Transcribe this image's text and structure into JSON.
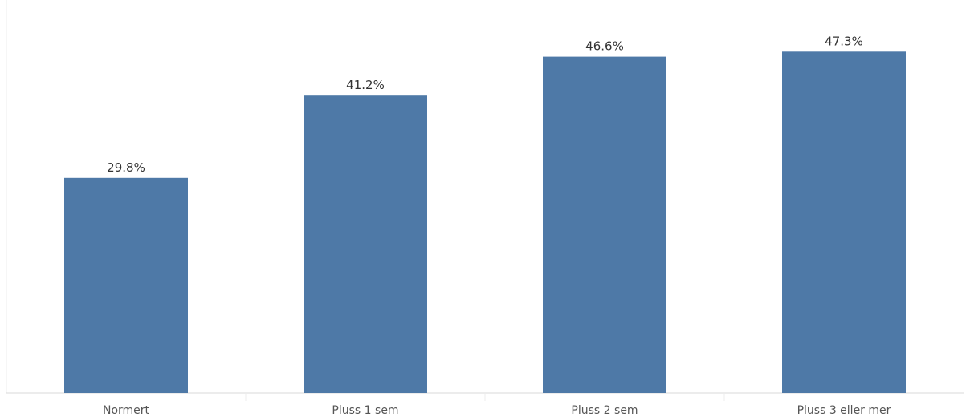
{
  "chart_data": {
    "type": "bar",
    "categories": [
      "Normert",
      "Pluss 1 sem",
      "Pluss 2 sem",
      "Pluss 3 eller mer"
    ],
    "values": [
      29.8,
      41.2,
      46.6,
      47.3
    ],
    "data_labels": [
      "29.8%",
      "41.2%",
      "46.6%",
      "47.3%"
    ],
    "title": "",
    "xlabel": "",
    "ylabel": "",
    "ylim": [
      0,
      50
    ],
    "grid": false,
    "legend": "none",
    "bar_color": "#4e79a7",
    "axis_color": "#d9d9d9",
    "separator_color": "#ececec"
  }
}
